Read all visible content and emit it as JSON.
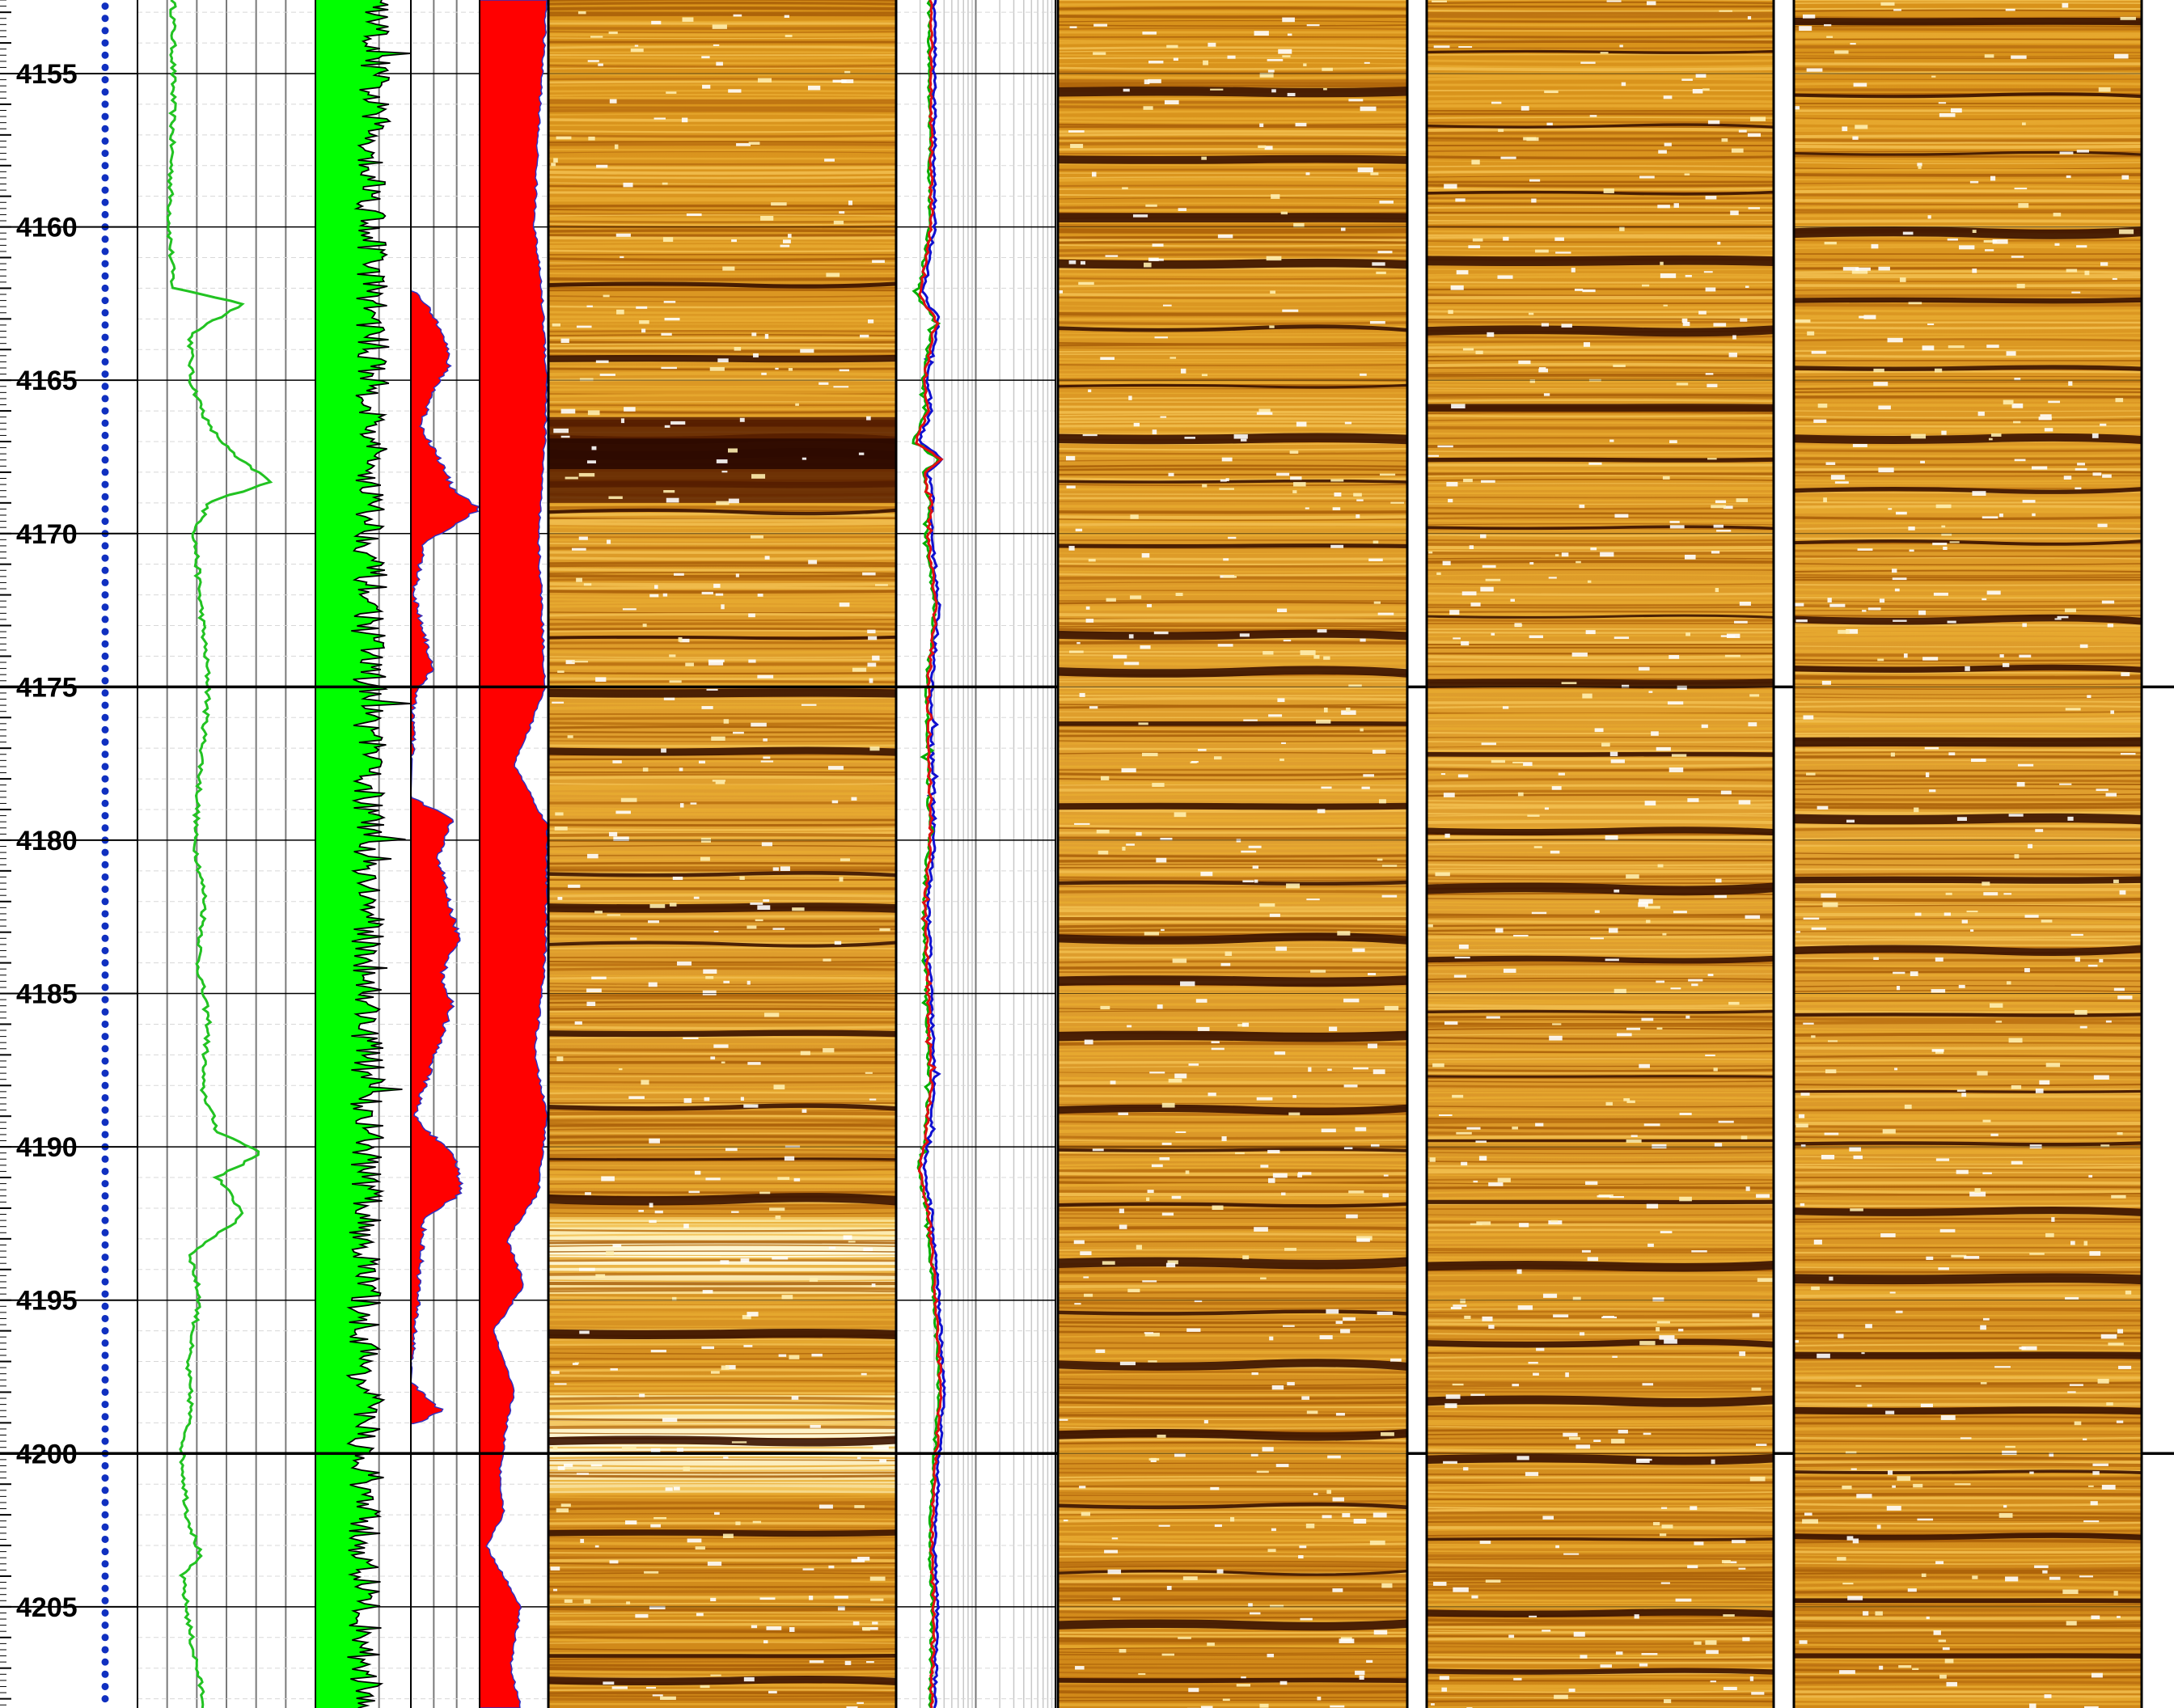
{
  "colors": {
    "gamma_trace": "#22c322",
    "gamma_fill": "#00ff00",
    "gamma_line": "#000000",
    "red_fill": "#ff0000",
    "red_outline": "#3030c0",
    "image_dark": "#3a1200",
    "image_mid": "#c98a10",
    "image_bright": "#fff4c0",
    "curve_blue": "#1010d0",
    "curve_red": "#e01010",
    "curve_green": "#00b000",
    "grid": "#808080",
    "depth_dot": "#1030c0"
  },
  "chart_data": {
    "type": "line",
    "title": "",
    "xlabel": "",
    "ylabel": "",
    "depth_range": [
      4152.6,
      4208.3
    ],
    "depth_ticks": [
      4155,
      4160,
      4165,
      4170,
      4175,
      4180,
      4185,
      4190,
      4195,
      4200,
      4205
    ],
    "depth_tick_labels": [
      "4155",
      "4160",
      "4165",
      "4170",
      "4175",
      "4180",
      "4185",
      "4190",
      "4195",
      "4200",
      "4205"
    ],
    "major_depths": [
      4175,
      4200
    ],
    "grid": true,
    "tracks": [
      {
        "name": "",
        "type": "line",
        "color": "green",
        "x_range": [
          0,
          1
        ],
        "depth": [
          4152.6,
          4156,
          4160,
          4162,
          4162.5,
          4163.5,
          4165,
          4166.5,
          4167.5,
          4168.3,
          4169,
          4170,
          4172,
          4175,
          4178,
          4180,
          4182,
          4184,
          4186,
          4188,
          4189.5,
          4190.2,
          4191,
          4192.2,
          4193.5,
          4195,
          4197,
          4198.5,
          4200,
          4202,
          4203.3,
          4204,
          4206,
          4208.3
        ],
        "values": [
          0.2,
          0.2,
          0.18,
          0.2,
          0.6,
          0.3,
          0.3,
          0.4,
          0.55,
          0.75,
          0.4,
          0.32,
          0.35,
          0.4,
          0.35,
          0.32,
          0.38,
          0.34,
          0.4,
          0.36,
          0.45,
          0.7,
          0.45,
          0.6,
          0.3,
          0.35,
          0.28,
          0.3,
          0.25,
          0.28,
          0.35,
          0.25,
          0.3,
          0.38
        ]
      },
      {
        "name": "",
        "type": "area",
        "color": "green",
        "x_range": [
          0,
          1
        ],
        "depth": [
          4152.6,
          4160,
          4165,
          4170,
          4175,
          4180,
          4185,
          4190,
          4195,
          4200,
          4205,
          4208.3
        ],
        "values": [
          0.62,
          0.6,
          0.6,
          0.58,
          0.57,
          0.56,
          0.55,
          0.54,
          0.52,
          0.5,
          0.52,
          0.53
        ]
      },
      {
        "name": "",
        "type": "area",
        "color": "red",
        "x_range": [
          0,
          1
        ],
        "depth": [
          4162,
          4162.5,
          4163.5,
          4164.5,
          4165.5,
          4166.5,
          4167.5,
          4168.5,
          4169.2,
          4170.3,
          4172,
          4173.7,
          4174.5,
          4175.3,
          4178.6,
          4179.3,
          4180.5,
          4182,
          4183.2,
          4184.4,
          4185.4,
          4189,
          4190.4,
          4191.5,
          4192.3,
          4197.7,
          4198.6,
          4199.1
        ],
        "values": [
          0,
          0.2,
          0.5,
          0.55,
          0.3,
          0.15,
          0.4,
          0.6,
          1.0,
          0.2,
          0.05,
          0.25,
          0.3,
          0.05,
          0,
          0.6,
          0.4,
          0.55,
          0.7,
          0.45,
          0.6,
          0.05,
          0.65,
          0.75,
          0.2,
          0,
          0.45,
          0
        ]
      },
      {
        "name": "",
        "type": "area",
        "color": "red",
        "x_range": [
          0,
          1
        ],
        "depth": [
          4152.6,
          4157,
          4160,
          4162,
          4165,
          4167,
          4170,
          4172,
          4175,
          4176.5,
          4177.5,
          4179.5,
          4181,
          4184,
          4187,
          4189,
          4191.5,
          4193,
          4194.5,
          4196,
          4198,
          4199,
          4200.5,
          4202,
          4203,
          4205,
          4207,
          4208.3
        ],
        "values": [
          0.98,
          0.85,
          0.8,
          0.9,
          0.98,
          0.95,
          0.85,
          0.9,
          0.95,
          0.7,
          0.5,
          0.98,
          0.98,
          0.95,
          0.8,
          0.98,
          0.85,
          0.4,
          0.65,
          0.2,
          0.5,
          0.4,
          0.3,
          0.35,
          0.1,
          0.6,
          0.45,
          0.6
        ]
      },
      {
        "name": "",
        "type": "line",
        "color": "blue/red/green",
        "x_range": [
          0,
          1
        ],
        "depth": [
          4152.6,
          4160,
          4162.3,
          4163,
          4165,
          4166,
          4167,
          4167.6,
          4168,
          4169,
          4170,
          4172.5,
          4175,
          4180,
          4182,
          4185,
          4188,
          4190,
          4190.7,
          4192,
          4195,
          4198,
          4200,
          4203,
          4205,
          4208.3
        ],
        "values": [
          0.22,
          0.22,
          0.15,
          0.25,
          0.18,
          0.2,
          0.12,
          0.28,
          0.18,
          0.22,
          0.2,
          0.25,
          0.2,
          0.22,
          0.18,
          0.2,
          0.22,
          0.18,
          0.15,
          0.2,
          0.25,
          0.28,
          0.25,
          0.22,
          0.24,
          0.22
        ]
      },
      {
        "name": "",
        "type": "heatmap",
        "color": "orange",
        "x_range": [
          0,
          1
        ],
        "dark_bands": [
          4161.9,
          4164.3,
          4166.4,
          4166.9,
          4167.4,
          4168.4,
          4169.3,
          4173.4,
          4175.2,
          4177.1,
          4181.1,
          4182.2,
          4183.4,
          4186.3,
          4188.7,
          4190.4,
          4191.7,
          4196.1,
          4199.6,
          4202.6,
          4206.6,
          4207.4
        ],
        "bright_intervals": [
          [
            4192.3,
            4194.8
          ],
          [
            4198.1,
            4201.3
          ]
        ]
      },
      {
        "name": "",
        "type": "heatmap",
        "color": "orange",
        "x_range": [
          0,
          1
        ],
        "dark_bands": [
          4155.6,
          4157.8,
          4159.7,
          4161.2,
          4163.3,
          4165.2,
          4166.9,
          4168.3,
          4170.4,
          4173.3,
          4174.5,
          4176.2,
          4178.9,
          4181.4,
          4183.2,
          4184.6,
          4186.4,
          4188.8,
          4190.1,
          4191.9,
          4193.8,
          4195.4,
          4197.1,
          4199.4,
          4201.7,
          4203.9,
          4205.6,
          4207.4
        ],
        "bright_intervals": []
      },
      {
        "name": "",
        "type": "heatmap",
        "color": "orange",
        "x_range": [
          0,
          1
        ],
        "dark_bands": [
          4154.3,
          4156.7,
          4158.9,
          4161.1,
          4163.4,
          4165.9,
          4167.6,
          4169.8,
          4172.7,
          4174.9,
          4177.2,
          4179.7,
          4181.6,
          4183.9,
          4185.6,
          4187.7,
          4189.8,
          4191.8,
          4193.9,
          4196.4,
          4198.3,
          4200.2,
          4202.8,
          4205.2,
          4207.1
        ],
        "bright_intervals": []
      },
      {
        "name": "",
        "type": "heatmap",
        "color": "orange",
        "x_range": [
          0,
          1
        ],
        "dark_bands": [
          4153.3,
          4155.7,
          4157.6,
          4160.2,
          4162.4,
          4164.6,
          4166.9,
          4168.6,
          4170.3,
          4172.8,
          4174.4,
          4176.8,
          4179.3,
          4181.3,
          4183.6,
          4185.7,
          4188.2,
          4189.9,
          4192.1,
          4194.3,
          4196.8,
          4198.6,
          4200.6,
          4202.7,
          4204.8,
          4206.6
        ],
        "bright_intervals": []
      }
    ]
  }
}
